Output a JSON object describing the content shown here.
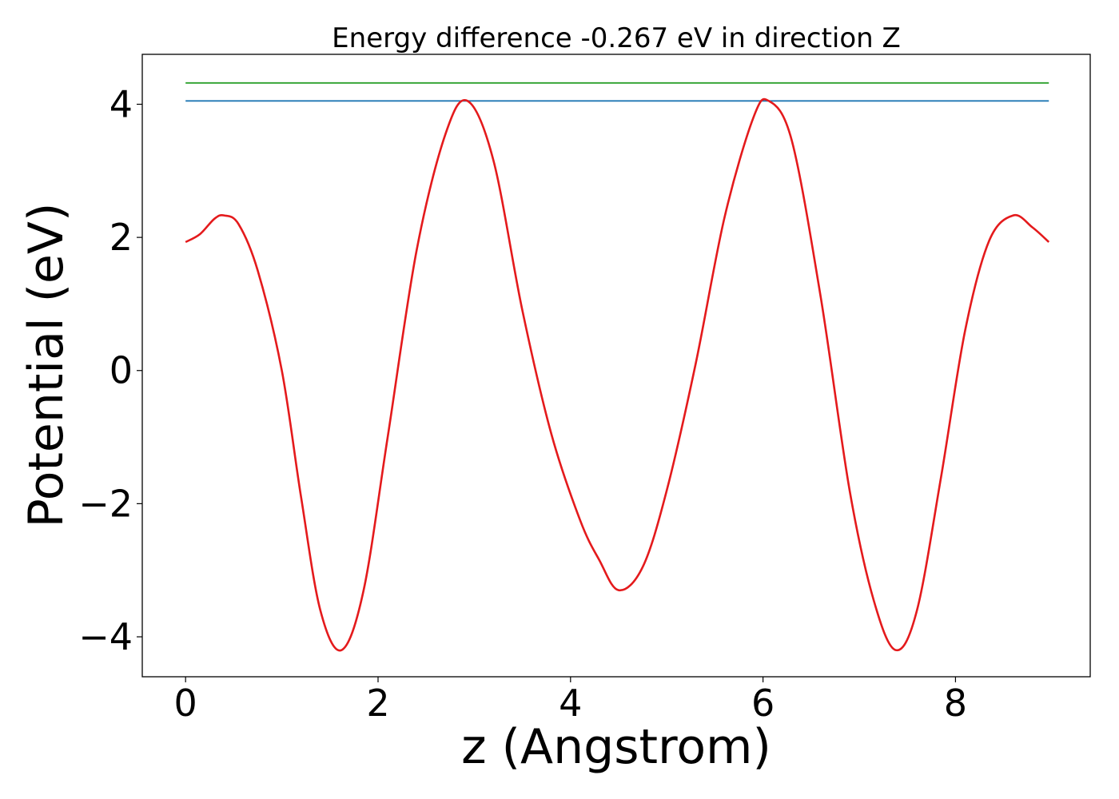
{
  "chart_data": {
    "type": "line",
    "title": "Energy difference -0.267 eV in direction Z",
    "xlabel": "z (Angstrom)",
    "ylabel": "Potential (eV)",
    "xlim": [
      -0.45,
      9.4
    ],
    "ylim": [
      -4.6,
      4.75
    ],
    "xticks": [
      0,
      2,
      4,
      6,
      8
    ],
    "xtick_labels": [
      "0",
      "2",
      "4",
      "6",
      "8"
    ],
    "yticks": [
      -4,
      -2,
      0,
      2,
      4
    ],
    "ytick_labels": [
      "−4",
      "−2",
      "0",
      "2",
      "4"
    ],
    "grid": false,
    "series": [
      {
        "color": "#2ca02c",
        "style": "horizontal",
        "x": [
          0,
          8.97
        ],
        "y": [
          4.32,
          4.32
        ]
      },
      {
        "color": "#1f77b4",
        "style": "horizontal",
        "x": [
          0,
          8.97
        ],
        "y": [
          4.05,
          4.05
        ]
      },
      {
        "color": "#e41a1c",
        "style": "curve",
        "x": [
          0,
          0.15,
          0.3,
          0.4,
          0.55,
          0.75,
          1.0,
          1.2,
          1.4,
          1.62,
          1.85,
          2.1,
          2.4,
          2.7,
          2.93,
          3.2,
          3.5,
          3.8,
          4.1,
          4.3,
          4.5,
          4.75,
          5.0,
          5.3,
          5.6,
          5.9,
          6.06,
          6.3,
          6.6,
          6.9,
          7.15,
          7.38,
          7.6,
          7.85,
          8.1,
          8.35,
          8.6,
          8.8,
          8.97
        ],
        "y": [
          1.93,
          2.05,
          2.28,
          2.33,
          2.2,
          1.5,
          0.0,
          -1.9,
          -3.6,
          -4.2,
          -3.3,
          -1.0,
          1.8,
          3.55,
          4.05,
          3.15,
          0.9,
          -0.95,
          -2.25,
          -2.85,
          -3.3,
          -2.95,
          -1.8,
          0.1,
          2.3,
          3.8,
          4.05,
          3.45,
          1.1,
          -1.8,
          -3.45,
          -4.2,
          -3.6,
          -1.6,
          0.6,
          1.95,
          2.33,
          2.15,
          1.93
        ]
      }
    ]
  }
}
